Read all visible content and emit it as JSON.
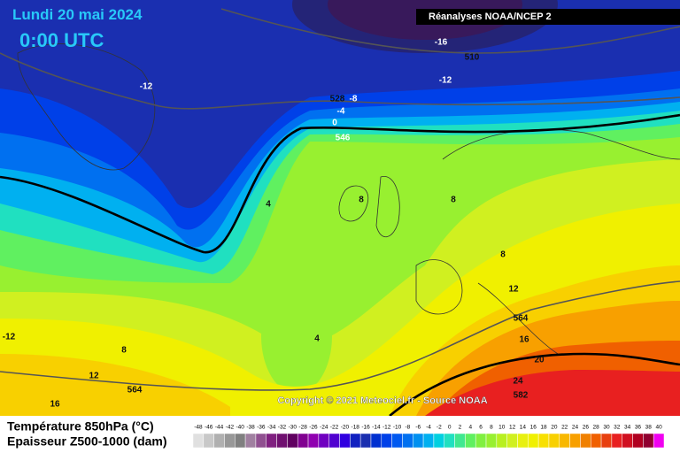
{
  "header": {
    "date": "Lundi 20 mai 2024",
    "time": "0:00 UTC",
    "source": "Réanalyses NOAA/NCEP 2"
  },
  "contour_labels": [
    "-16",
    "510",
    "-12",
    "-12",
    "528",
    "-8",
    "-4",
    "0",
    "546",
    "4",
    "8",
    "8",
    "8",
    "12",
    "564",
    "16",
    "20",
    "24",
    "582",
    "-12",
    "8",
    "12",
    "16",
    "4",
    "564"
  ],
  "copyright": "Copyright © 2021 Meteociel.fr - Source NOAA",
  "legend": {
    "line1": "Température 850hPa (°C)",
    "line2": "Epaisseur Z500-1000 (dam)",
    "scale": [
      -48,
      -46,
      -44,
      -42,
      -40,
      -38,
      -36,
      -34,
      -32,
      -30,
      -28,
      -26,
      -24,
      -22,
      -20,
      -18,
      -16,
      -14,
      -12,
      -10,
      -8,
      -6,
      -4,
      -2,
      0,
      2,
      4,
      6,
      8,
      10,
      12,
      14,
      16,
      18,
      20,
      22,
      24,
      26,
      28,
      30,
      32,
      34,
      36,
      38,
      40
    ]
  }
}
